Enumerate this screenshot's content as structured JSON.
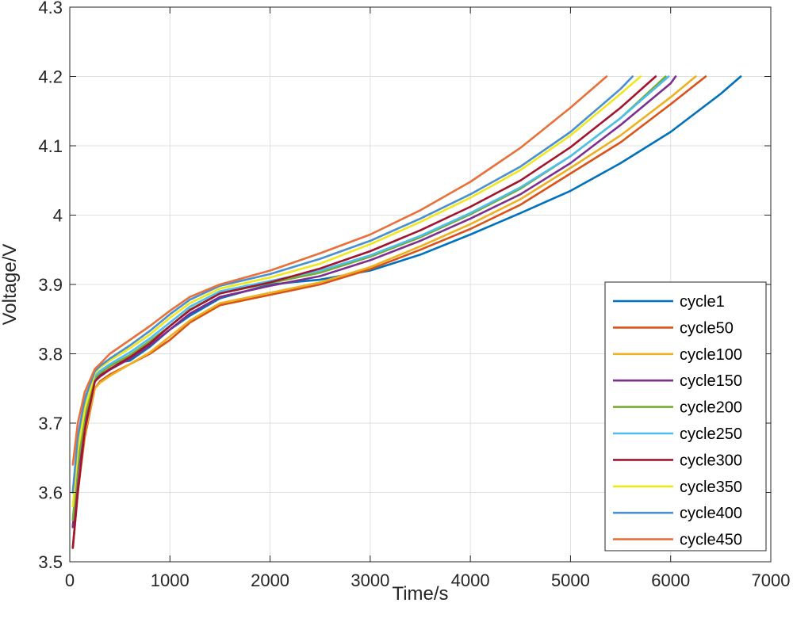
{
  "chart_data": {
    "type": "line",
    "title": "",
    "xlabel": "Time/s",
    "ylabel": "Voltage/V",
    "xlim": [
      0,
      7000
    ],
    "ylim": [
      3.5,
      4.3
    ],
    "xticks": [
      "0",
      "1000",
      "2000",
      "3000",
      "4000",
      "5000",
      "6000",
      "7000"
    ],
    "yticks": [
      "3.5",
      "3.6",
      "3.7",
      "3.8",
      "3.9",
      "4",
      "4.1",
      "4.2",
      "4.3"
    ],
    "grid": true,
    "legend_position": "bottom-right",
    "series": [
      {
        "name": "cycle1",
        "color": "#0072BD",
        "x": [
          30,
          80,
          150,
          250,
          300,
          400,
          600,
          800,
          1000,
          1200,
          1500,
          2000,
          2500,
          3000,
          3500,
          4000,
          4500,
          5000,
          5500,
          6000,
          6500,
          6700
        ],
        "y": [
          3.55,
          3.64,
          3.71,
          3.76,
          3.77,
          3.785,
          3.79,
          3.81,
          3.835,
          3.855,
          3.88,
          3.9,
          3.907,
          3.92,
          3.943,
          3.972,
          4.003,
          4.035,
          4.075,
          4.12,
          4.175,
          4.2
        ]
      },
      {
        "name": "cycle50",
        "color": "#D95319",
        "x": [
          30,
          80,
          150,
          250,
          300,
          400,
          600,
          800,
          1000,
          1200,
          1500,
          2000,
          2500,
          3000,
          3500,
          4000,
          4500,
          5000,
          5500,
          6000,
          6350
        ],
        "y": [
          3.52,
          3.6,
          3.68,
          3.75,
          3.76,
          3.77,
          3.785,
          3.8,
          3.82,
          3.845,
          3.87,
          3.885,
          3.9,
          3.922,
          3.95,
          3.98,
          4.015,
          4.06,
          4.105,
          4.16,
          4.2
        ]
      },
      {
        "name": "cycle100",
        "color": "#EDB120",
        "x": [
          30,
          80,
          150,
          250,
          300,
          400,
          600,
          800,
          1000,
          1200,
          1500,
          2000,
          2500,
          3000,
          3500,
          4000,
          4500,
          5000,
          5500,
          6000,
          6250
        ],
        "y": [
          3.52,
          3.6,
          3.685,
          3.75,
          3.758,
          3.768,
          3.785,
          3.802,
          3.825,
          3.848,
          3.873,
          3.888,
          3.903,
          3.925,
          3.955,
          3.987,
          4.023,
          4.068,
          4.115,
          4.17,
          4.2
        ]
      },
      {
        "name": "cycle150",
        "color": "#7E2F8E",
        "x": [
          30,
          80,
          150,
          250,
          300,
          400,
          600,
          800,
          1000,
          1200,
          1500,
          2000,
          2500,
          3000,
          3500,
          4000,
          4500,
          5000,
          5500,
          6000,
          6050
        ],
        "y": [
          3.55,
          3.63,
          3.7,
          3.76,
          3.767,
          3.777,
          3.793,
          3.812,
          3.835,
          3.858,
          3.882,
          3.898,
          3.912,
          3.935,
          3.963,
          3.995,
          4.03,
          4.075,
          4.13,
          4.19,
          4.2
        ]
      },
      {
        "name": "cycle200",
        "color": "#77AC30",
        "x": [
          30,
          80,
          150,
          250,
          300,
          400,
          600,
          800,
          1000,
          1200,
          1500,
          2000,
          2500,
          3000,
          3500,
          4000,
          4500,
          5000,
          5500,
          5950
        ],
        "y": [
          3.56,
          3.64,
          3.71,
          3.765,
          3.772,
          3.782,
          3.798,
          3.818,
          3.84,
          3.864,
          3.887,
          3.902,
          3.917,
          3.94,
          3.968,
          4.001,
          4.038,
          4.085,
          4.14,
          4.2
        ]
      },
      {
        "name": "cycle250",
        "color": "#4DBEEE",
        "x": [
          30,
          80,
          150,
          250,
          300,
          400,
          600,
          800,
          1000,
          1200,
          1500,
          2000,
          2500,
          3000,
          3500,
          4000,
          4500,
          5000,
          5500,
          5980
        ],
        "y": [
          3.6,
          3.67,
          3.73,
          3.768,
          3.775,
          3.785,
          3.802,
          3.822,
          3.845,
          3.868,
          3.89,
          3.905,
          3.92,
          3.942,
          3.97,
          4.003,
          4.04,
          4.085,
          4.14,
          4.2
        ]
      },
      {
        "name": "cycle300",
        "color": "#A2142F",
        "x": [
          30,
          80,
          150,
          250,
          300,
          400,
          600,
          800,
          1000,
          1200,
          1500,
          2000,
          2500,
          3000,
          3500,
          4000,
          4500,
          5000,
          5500,
          5850
        ],
        "y": [
          3.52,
          3.6,
          3.69,
          3.76,
          3.768,
          3.778,
          3.795,
          3.815,
          3.84,
          3.863,
          3.887,
          3.903,
          3.923,
          3.948,
          3.978,
          4.012,
          4.05,
          4.098,
          4.155,
          4.2
        ]
      },
      {
        "name": "cycle350",
        "color": "#F0E81E",
        "x": [
          30,
          80,
          150,
          250,
          300,
          400,
          600,
          800,
          1000,
          1200,
          1500,
          2000,
          2500,
          3000,
          3500,
          4000,
          4500,
          5000,
          5500,
          5700
        ],
        "y": [
          3.58,
          3.66,
          3.72,
          3.772,
          3.78,
          3.79,
          3.808,
          3.828,
          3.852,
          3.873,
          3.894,
          3.91,
          3.93,
          3.958,
          3.99,
          4.025,
          4.065,
          4.115,
          4.175,
          4.2
        ]
      },
      {
        "name": "cycle400",
        "color": "#4A90D0",
        "x": [
          30,
          80,
          150,
          250,
          300,
          400,
          600,
          800,
          1000,
          1200,
          1500,
          2000,
          2500,
          3000,
          3500,
          4000,
          4500,
          5000,
          5500,
          5620
        ],
        "y": [
          3.6,
          3.68,
          3.735,
          3.775,
          3.782,
          3.793,
          3.812,
          3.833,
          3.857,
          3.878,
          3.898,
          3.915,
          3.937,
          3.963,
          3.995,
          4.03,
          4.07,
          4.12,
          4.182,
          4.2
        ]
      },
      {
        "name": "cycle450",
        "color": "#E8703A",
        "x": [
          30,
          80,
          150,
          250,
          300,
          400,
          600,
          800,
          1000,
          1200,
          1500,
          2000,
          2500,
          3000,
          3500,
          4000,
          4500,
          5000,
          5360
        ],
        "y": [
          3.64,
          3.7,
          3.745,
          3.778,
          3.785,
          3.8,
          3.82,
          3.84,
          3.862,
          3.882,
          3.9,
          3.92,
          3.945,
          3.972,
          4.007,
          4.048,
          4.097,
          4.155,
          4.2
        ]
      }
    ]
  }
}
